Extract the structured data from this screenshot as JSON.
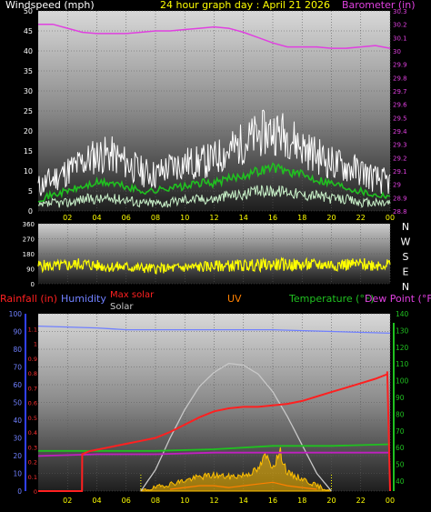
{
  "header": {
    "wind_title": "Windspeed (mph)",
    "date_title": "24 hour graph day : April 21 2026",
    "baro_title": "Barometer (in)"
  },
  "x_ticks": [
    "02",
    "04",
    "06",
    "08",
    "10",
    "12",
    "14",
    "16",
    "18",
    "20",
    "22",
    "00"
  ],
  "legend": {
    "rainfall": "Rainfall (in)",
    "humidity": "Humidity",
    "max_solar": "Max solar",
    "solar": "Solar",
    "uv": "UV",
    "temperature": "Temperature (°F)",
    "dew_point": "Dew Point (°F)"
  },
  "colors": {
    "wind_gust": "#ffffff",
    "wind_avg": "#20c020",
    "wind_low": "#c8f0c8",
    "barometer": "#e040e0",
    "direction": "#ffff00",
    "rain": "#ff2020",
    "humidity": "#7080ff",
    "max_solar": "#c8c8c8",
    "solar": "#ffc000",
    "uv": "#ff8000",
    "temperature": "#20c020",
    "dew_point": "#c020c0"
  },
  "chart_data": [
    {
      "type": "line",
      "title": "24 hour graph day : April 21 2026",
      "xlabel": "",
      "x_range_hours": [
        0,
        24
      ],
      "left_axis": {
        "label": "Windspeed (mph)",
        "ticks": [
          "50",
          "45",
          "40",
          "35",
          "30",
          "25",
          "20",
          "15",
          "10",
          "5",
          "0"
        ],
        "range": [
          0,
          50
        ]
      },
      "right_axis": {
        "label": "Barometer (in)",
        "ticks": [
          "30.3",
          "30.2",
          "30.1",
          "30",
          "29.9",
          "29.8",
          "29.7",
          "29.6",
          "29.5",
          "29.4",
          "29.3",
          "29.2",
          "29.1",
          "29",
          "28.9",
          "28.8"
        ],
        "range": [
          28.8,
          30.3
        ]
      },
      "series": [
        {
          "name": "Barometer (in)",
          "axis": "right",
          "x": [
            0,
            1,
            2,
            3,
            4,
            5,
            6,
            7,
            8,
            9,
            10,
            11,
            12,
            13,
            14,
            15,
            16,
            17,
            18,
            19,
            20,
            21,
            22,
            23,
            24
          ],
          "values": [
            30.2,
            30.2,
            30.17,
            30.14,
            30.13,
            30.13,
            30.13,
            30.14,
            30.15,
            30.15,
            30.16,
            30.17,
            30.18,
            30.17,
            30.14,
            30.1,
            30.06,
            30.03,
            30.03,
            30.03,
            30.02,
            30.02,
            30.03,
            30.04,
            30.02
          ]
        },
        {
          "axis": "left",
          "x": [
            0,
            1,
            2,
            3,
            4,
            5,
            6,
            7,
            8,
            9,
            10,
            11,
            12,
            13,
            14,
            15,
            16,
            17,
            18,
            19,
            20,
            21,
            22,
            23,
            24
          ],
          "values": [
            6,
            8,
            10,
            12,
            14,
            14,
            12,
            10,
            9,
            11,
            12,
            12,
            13,
            15,
            17,
            19,
            20,
            19,
            16,
            14,
            12,
            11,
            10,
            8,
            7
          ]
        },
        {
          "axis": "left",
          "x": [
            0,
            1,
            2,
            3,
            4,
            5,
            6,
            7,
            8,
            9,
            10,
            11,
            12,
            13,
            14,
            15,
            16,
            17,
            18,
            19,
            20,
            21,
            22,
            23,
            24
          ],
          "values": [
            3,
            4,
            5,
            6,
            7,
            7,
            6,
            5,
            5,
            6,
            6,
            7,
            7,
            8,
            9,
            10,
            11,
            10,
            9,
            8,
            7,
            6,
            5,
            4,
            4
          ]
        },
        {
          "axis": "left",
          "x": [
            0,
            1,
            2,
            3,
            4,
            5,
            6,
            7,
            8,
            9,
            10,
            11,
            12,
            13,
            14,
            15,
            16,
            17,
            18,
            19,
            20,
            21,
            22,
            23,
            24
          ],
          "values": [
            1,
            2,
            2,
            3,
            3,
            3,
            3,
            2,
            2,
            2,
            3,
            3,
            3,
            4,
            4,
            5,
            5,
            5,
            4,
            4,
            3,
            3,
            2,
            2,
            2
          ]
        }
      ]
    },
    {
      "type": "line",
      "title": "",
      "x_range_hours": [
        0,
        24
      ],
      "left_axis": {
        "ticks": [
          "360",
          "270",
          "180",
          "90",
          "0"
        ],
        "range": [
          0,
          360
        ]
      },
      "right_axis_labels": [
        "N",
        "W",
        "S",
        "E",
        "N"
      ],
      "series": [
        {
          "x": [
            0,
            1,
            2,
            3,
            4,
            5,
            6,
            7,
            8,
            9,
            10,
            11,
            12,
            13,
            14,
            15,
            16,
            17,
            18,
            19,
            20,
            21,
            22,
            23,
            24
          ],
          "values": [
            110,
            105,
            110,
            120,
            108,
            102,
            100,
            95,
            90,
            92,
            98,
            100,
            105,
            108,
            110,
            112,
            115,
            115,
            112,
            114,
            115,
            116,
            116,
            115,
            116
          ]
        }
      ]
    },
    {
      "type": "line",
      "title": "",
      "x_range_hours": [
        0,
        24
      ],
      "axis_far_left": {
        "label": "Rainfall (in)",
        "ticks": [
          "1.1",
          "1",
          "0.9",
          "0.8",
          "0.7",
          "0.6",
          "0.5",
          "0.4",
          "0.3",
          "0.2",
          "0.1",
          "0"
        ],
        "range": [
          0,
          1.2
        ]
      },
      "axis_left": {
        "label": "Humidity",
        "ticks": [
          "100",
          "90",
          "80",
          "70",
          "60",
          "50",
          "40",
          "30",
          "20",
          "10",
          "0"
        ],
        "range": [
          0,
          100
        ]
      },
      "axis_right": {
        "label": "Temperature (°F)",
        "ticks": [
          "140",
          "130",
          "120",
          "110",
          "100",
          "90",
          "80",
          "70",
          "60",
          "50",
          "40"
        ],
        "range": [
          34,
          140
        ]
      },
      "series": [
        {
          "name": "Humidity",
          "axis": "left",
          "x": [
            0,
            4,
            6,
            8,
            12,
            16,
            20,
            24
          ],
          "values": [
            93,
            92,
            91,
            91,
            91,
            91,
            90,
            89
          ]
        },
        {
          "name": "Rainfall (in)",
          "axis": "far_left",
          "x": [
            0,
            2.99,
            3.0,
            3.5,
            5,
            6,
            7,
            8,
            9,
            10,
            11,
            12,
            13,
            14,
            15,
            16,
            17,
            18,
            19,
            20,
            21,
            22,
            23,
            23.8,
            23.81,
            24
          ],
          "values": [
            0,
            0,
            0.25,
            0.27,
            0.3,
            0.32,
            0.34,
            0.36,
            0.4,
            0.45,
            0.5,
            0.54,
            0.56,
            0.57,
            0.57,
            0.58,
            0.59,
            0.61,
            0.64,
            0.67,
            0.7,
            0.73,
            0.76,
            0.79,
            0.81,
            0
          ]
        },
        {
          "name": "Max solar",
          "axis": "left",
          "x": [
            7,
            8,
            9,
            10,
            11,
            12,
            13,
            14,
            15,
            16,
            17,
            18,
            19,
            20
          ],
          "values": [
            0,
            12,
            30,
            46,
            59,
            67,
            72,
            71,
            66,
            56,
            42,
            26,
            10,
            0
          ]
        },
        {
          "name": "Solar",
          "axis": "left",
          "x": [
            7,
            8,
            9,
            10,
            11,
            12,
            13,
            14,
            15,
            15.5,
            16,
            16.5,
            17,
            18,
            19,
            20
          ],
          "values": [
            0,
            2,
            4,
            6,
            8,
            9,
            8,
            9,
            12,
            20,
            14,
            22,
            10,
            7,
            3,
            0
          ]
        },
        {
          "name": "UV",
          "axis": "left",
          "x": [
            9,
            10,
            11,
            12,
            13,
            14,
            15,
            16,
            17,
            18,
            19
          ],
          "values": [
            1,
            2,
            3,
            3,
            2,
            3,
            4,
            5,
            3,
            2,
            1
          ]
        },
        {
          "name": "Temperature (°F)",
          "axis": "right",
          "x": [
            0,
            4,
            8,
            12,
            14,
            16,
            20,
            24
          ],
          "values": [
            58,
            58,
            58,
            59,
            60,
            61,
            61,
            62
          ]
        },
        {
          "name": "Dew Point (°F)",
          "axis": "right",
          "x": [
            0,
            4,
            8,
            12,
            14,
            16,
            20,
            24
          ],
          "values": [
            55,
            56,
            56,
            57,
            57,
            57,
            57,
            57
          ]
        }
      ]
    }
  ]
}
